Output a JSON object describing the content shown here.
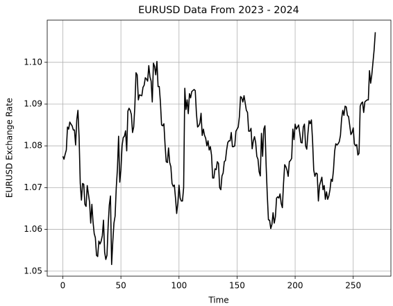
{
  "chart_data": {
    "type": "line",
    "title": "EURUSD Data From 2023 - 2024",
    "x_label": "Time",
    "y_label": "EURUSD Exchange Rate",
    "color": "#000000",
    "grid": true,
    "xlim": [
      -13.45,
      282.45
    ],
    "xticks": [
      0,
      50,
      100,
      150,
      200,
      250
    ],
    "ylim": [
      1.0488,
      1.1101
    ],
    "yticks": [
      1.05,
      1.06,
      1.07,
      1.08,
      1.09,
      {
        "value": 1.1,
        "label": "1.10"
      }
    ],
    "x": [
      0,
      1,
      2,
      3,
      4,
      5,
      6,
      7,
      8,
      9,
      10,
      11,
      12,
      13,
      14,
      15,
      16,
      17,
      18,
      19,
      20,
      21,
      23,
      24,
      25,
      26,
      27,
      28,
      29,
      30,
      31,
      32,
      33,
      34,
      35,
      36,
      37,
      38,
      39,
      40,
      41,
      42,
      43,
      44,
      45,
      46,
      47,
      48,
      49,
      50,
      51,
      52,
      53,
      54,
      55,
      56,
      57,
      58,
      59,
      60,
      61,
      62,
      63,
      64,
      65,
      66,
      68,
      69,
      70,
      71,
      72,
      73,
      74,
      75,
      76,
      77,
      78,
      79,
      80,
      81,
      82,
      83,
      84,
      85,
      86,
      87,
      88,
      89,
      90,
      91,
      92,
      93,
      94,
      95,
      96,
      97,
      98,
      99,
      100,
      101,
      102,
      103,
      104,
      105,
      106,
      107,
      108,
      109,
      110,
      111,
      113,
      114,
      115,
      116,
      117,
      118,
      119,
      120,
      121,
      122,
      123,
      124,
      125,
      126,
      127,
      128,
      129,
      130,
      131,
      132,
      133,
      134,
      135,
      136,
      137,
      138,
      139,
      140,
      141,
      142,
      143,
      144,
      145,
      146,
      147,
      148,
      149,
      150,
      151,
      152,
      153,
      154,
      155,
      156,
      158,
      159,
      160,
      161,
      162,
      163,
      164,
      165,
      166,
      167,
      168,
      169,
      170,
      171,
      172,
      173,
      174,
      175,
      176,
      177,
      178,
      179,
      180,
      181,
      182,
      183,
      184,
      185,
      186,
      187,
      188,
      189,
      190,
      191,
      192,
      193,
      194,
      195,
      196,
      197,
      198,
      199,
      200,
      201,
      203,
      204,
      205,
      206,
      207,
      208,
      209,
      210,
      211,
      212,
      213,
      214,
      215,
      216,
      217,
      218,
      219,
      220,
      221,
      222,
      223,
      224,
      225,
      226,
      227,
      228,
      229,
      230,
      231,
      232,
      233,
      234,
      235,
      236,
      237,
      238,
      239,
      240,
      241,
      242,
      243,
      244,
      245,
      246,
      248,
      249,
      250,
      251,
      252,
      253,
      254,
      255,
      256,
      257,
      258,
      259,
      260,
      261,
      262,
      263,
      264,
      265,
      266,
      267,
      268,
      269
    ],
    "values": [
      1.0775,
      1.0768,
      1.078,
      1.079,
      1.0845,
      1.084,
      1.0857,
      1.0852,
      1.0848,
      1.0838,
      1.0838,
      1.0802,
      1.0862,
      1.0885,
      1.082,
      1.071,
      1.067,
      1.071,
      1.0708,
      1.066,
      1.0655,
      1.0705,
      1.0665,
      1.0615,
      1.066,
      1.0618,
      1.059,
      1.058,
      1.0538,
      1.0535,
      1.0572,
      1.0565,
      1.0572,
      1.0585,
      1.0622,
      1.0545,
      1.0528,
      1.0538,
      1.0608,
      1.0658,
      1.068,
      1.0516,
      1.057,
      1.0615,
      1.0632,
      1.07,
      1.0745,
      1.0823,
      1.0713,
      1.0742,
      1.08,
      1.082,
      1.0823,
      1.0836,
      1.0788,
      1.0883,
      1.089,
      1.0885,
      1.0875,
      1.0832,
      1.0845,
      1.0895,
      1.0975,
      1.097,
      1.091,
      1.0922,
      1.092,
      1.094,
      1.0945,
      1.0963,
      1.096,
      1.0955,
      1.0992,
      1.0965,
      1.0955,
      1.0905,
      1.0998,
      1.099,
      1.097,
      1.1002,
      1.0942,
      1.0942,
      1.0905,
      1.085,
      1.0848,
      1.0853,
      1.0803,
      1.0762,
      1.076,
      1.0795,
      1.076,
      1.075,
      1.071,
      1.0703,
      1.0706,
      1.0675,
      1.0638,
      1.0663,
      1.0706,
      1.0675,
      1.0668,
      1.0668,
      1.07,
      1.0938,
      1.0887,
      1.091,
      1.0877,
      1.0925,
      1.0915,
      1.093,
      1.0935,
      1.0932,
      1.0878,
      1.0845,
      1.0848,
      1.0855,
      1.0878,
      1.0825,
      1.084,
      1.0825,
      1.0818,
      1.08,
      1.0812,
      1.079,
      1.0798,
      1.0778,
      1.0723,
      1.0723,
      1.0745,
      1.0743,
      1.0762,
      1.0758,
      1.07,
      1.0695,
      1.0728,
      1.0735,
      1.0762,
      1.0765,
      1.079,
      1.0808,
      1.0812,
      1.0812,
      1.0832,
      1.0798,
      1.0798,
      1.08,
      1.0835,
      1.084,
      1.0845,
      1.087,
      1.0918,
      1.0915,
      1.0905,
      1.092,
      1.0885,
      1.088,
      1.0835,
      1.0835,
      1.0842,
      1.0793,
      1.0812,
      1.0822,
      1.0808,
      1.0775,
      1.0768,
      1.0738,
      1.0728,
      1.083,
      1.0775,
      1.084,
      1.0848,
      1.0755,
      1.0683,
      1.0623,
      1.0622,
      1.0602,
      1.0612,
      1.064,
      1.0615,
      1.063,
      1.0675,
      1.0678,
      1.0675,
      1.0685,
      1.0662,
      1.0652,
      1.071,
      1.0755,
      1.075,
      1.0742,
      1.0727,
      1.0762,
      1.0765,
      1.077,
      1.084,
      1.0815,
      1.0852,
      1.084,
      1.085,
      1.083,
      1.0808,
      1.0807,
      1.0845,
      1.0852,
      1.08,
      1.0792,
      1.083,
      1.086,
      1.0853,
      1.0862,
      1.0812,
      1.0742,
      1.0727,
      1.0735,
      1.0733,
      1.0668,
      1.0705,
      1.0715,
      1.0725,
      1.0695,
      1.0705,
      1.0672,
      1.069,
      1.0672,
      1.068,
      1.0695,
      1.072,
      1.0715,
      1.0742,
      1.0787,
      1.0805,
      1.0802,
      1.0805,
      1.081,
      1.0825,
      1.0865,
      1.0885,
      1.0873,
      1.0895,
      1.0893,
      1.0873,
      1.087,
      1.0827,
      1.0832,
      1.0843,
      1.0805,
      1.08,
      1.0803,
      1.0778,
      1.0782,
      1.0895,
      1.0902,
      1.0905,
      1.088,
      1.0905,
      1.0908,
      1.091,
      1.091,
      1.098,
      1.095,
      1.097,
      1.1,
      1.103,
      1.1072
    ]
  }
}
